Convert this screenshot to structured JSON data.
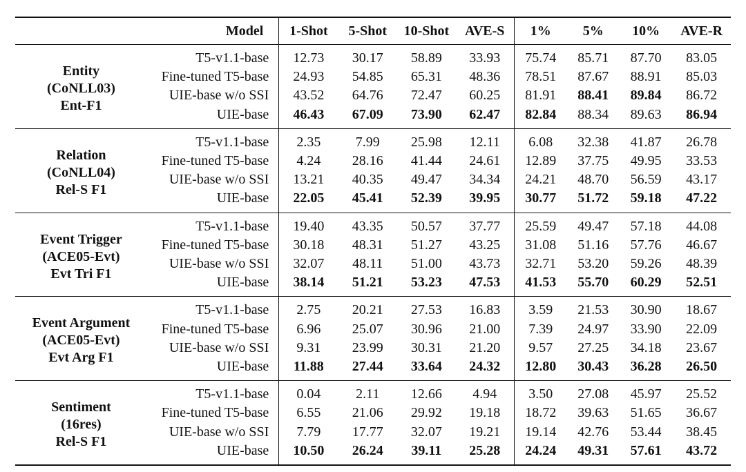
{
  "header": {
    "model": "Model",
    "cols": [
      "1-Shot",
      "5-Shot",
      "10-Shot",
      "AVE-S",
      "1%",
      "5%",
      "10%",
      "AVE-R"
    ]
  },
  "groups": [
    {
      "task": [
        "Entity",
        "(CoNLL03)",
        "Ent-F1"
      ],
      "rows": [
        {
          "model": "T5-v1.1-base",
          "v": [
            "12.73",
            "30.17",
            "58.89",
            "33.93",
            "75.74",
            "85.71",
            "87.70",
            "83.05"
          ]
        },
        {
          "model": "Fine-tuned T5-base",
          "v": [
            "24.93",
            "54.85",
            "65.31",
            "48.36",
            "78.51",
            "87.67",
            "88.91",
            "85.03"
          ]
        },
        {
          "model": "UIE-base w/o SSI",
          "v": [
            "43.52",
            "64.76",
            "72.47",
            "60.25",
            "81.91",
            "88.41",
            "89.84",
            "86.72"
          ]
        },
        {
          "model": "UIE-base",
          "v": [
            "46.43",
            "67.09",
            "73.90",
            "62.47",
            "82.84",
            "88.34",
            "89.63",
            "86.94"
          ]
        }
      ]
    },
    {
      "task": [
        "Relation",
        "(CoNLL04)",
        "Rel-S F1"
      ],
      "rows": [
        {
          "model": "T5-v1.1-base",
          "v": [
            "2.35",
            "7.99",
            "25.98",
            "12.11",
            "6.08",
            "32.38",
            "41.87",
            "26.78"
          ]
        },
        {
          "model": "Fine-tuned T5-base",
          "v": [
            "4.24",
            "28.16",
            "41.44",
            "24.61",
            "12.89",
            "37.75",
            "49.95",
            "33.53"
          ]
        },
        {
          "model": "UIE-base w/o SSI",
          "v": [
            "13.21",
            "40.35",
            "49.47",
            "34.34",
            "24.21",
            "48.70",
            "56.59",
            "43.17"
          ]
        },
        {
          "model": "UIE-base",
          "v": [
            "22.05",
            "45.41",
            "52.39",
            "39.95",
            "30.77",
            "51.72",
            "59.18",
            "47.22"
          ]
        }
      ]
    },
    {
      "task": [
        "Event Trigger",
        "(ACE05-Evt)",
        "Evt Tri F1"
      ],
      "rows": [
        {
          "model": "T5-v1.1-base",
          "v": [
            "19.40",
            "43.35",
            "50.57",
            "37.77",
            "25.59",
            "49.47",
            "57.18",
            "44.08"
          ]
        },
        {
          "model": "Fine-tuned T5-base",
          "v": [
            "30.18",
            "48.31",
            "51.27",
            "43.25",
            "31.08",
            "51.16",
            "57.76",
            "46.67"
          ]
        },
        {
          "model": "UIE-base w/o SSI",
          "v": [
            "32.07",
            "48.11",
            "51.00",
            "43.73",
            "32.71",
            "53.20",
            "59.26",
            "48.39"
          ]
        },
        {
          "model": "UIE-base",
          "v": [
            "38.14",
            "51.21",
            "53.23",
            "47.53",
            "41.53",
            "55.70",
            "60.29",
            "52.51"
          ]
        }
      ]
    },
    {
      "task": [
        "Event Argument",
        "(ACE05-Evt)",
        "Evt Arg F1"
      ],
      "rows": [
        {
          "model": "T5-v1.1-base",
          "v": [
            "2.75",
            "20.21",
            "27.53",
            "16.83",
            "3.59",
            "21.53",
            "30.90",
            "18.67"
          ]
        },
        {
          "model": "Fine-tuned T5-base",
          "v": [
            "6.96",
            "25.07",
            "30.96",
            "21.00",
            "7.39",
            "24.97",
            "33.90",
            "22.09"
          ]
        },
        {
          "model": "UIE-base w/o SSI",
          "v": [
            "9.31",
            "23.99",
            "30.31",
            "21.20",
            "9.57",
            "27.25",
            "34.18",
            "23.67"
          ]
        },
        {
          "model": "UIE-base",
          "v": [
            "11.88",
            "27.44",
            "33.64",
            "24.32",
            "12.80",
            "30.43",
            "36.28",
            "26.50"
          ]
        }
      ]
    },
    {
      "task": [
        "Sentiment",
        "(16res)",
        "Rel-S F1"
      ],
      "rows": [
        {
          "model": "T5-v1.1-base",
          "v": [
            "0.04",
            "2.11",
            "12.66",
            "4.94",
            "3.50",
            "27.08",
            "45.97",
            "25.52"
          ]
        },
        {
          "model": "Fine-tuned T5-base",
          "v": [
            "6.55",
            "21.06",
            "29.92",
            "19.18",
            "18.72",
            "39.63",
            "51.65",
            "36.67"
          ]
        },
        {
          "model": "UIE-base w/o SSI",
          "v": [
            "7.79",
            "17.77",
            "32.07",
            "19.21",
            "19.14",
            "42.76",
            "53.44",
            "38.45"
          ]
        },
        {
          "model": "UIE-base",
          "v": [
            "10.50",
            "26.24",
            "39.11",
            "25.28",
            "24.24",
            "49.31",
            "57.61",
            "43.72"
          ]
        }
      ]
    }
  ],
  "bold": {
    "g0": [
      [
        2,
        5
      ],
      [
        2,
        6
      ],
      [
        3,
        0
      ],
      [
        3,
        1
      ],
      [
        3,
        2
      ],
      [
        3,
        3
      ],
      [
        3,
        4
      ],
      [
        3,
        7
      ]
    ],
    "g1": [
      [
        3,
        0
      ],
      [
        3,
        1
      ],
      [
        3,
        2
      ],
      [
        3,
        3
      ],
      [
        3,
        4
      ],
      [
        3,
        5
      ],
      [
        3,
        6
      ],
      [
        3,
        7
      ]
    ],
    "g2": [
      [
        3,
        0
      ],
      [
        3,
        1
      ],
      [
        3,
        2
      ],
      [
        3,
        3
      ],
      [
        3,
        4
      ],
      [
        3,
        5
      ],
      [
        3,
        6
      ],
      [
        3,
        7
      ]
    ],
    "g3": [
      [
        3,
        0
      ],
      [
        3,
        1
      ],
      [
        3,
        2
      ],
      [
        3,
        3
      ],
      [
        3,
        4
      ],
      [
        3,
        5
      ],
      [
        3,
        6
      ],
      [
        3,
        7
      ]
    ],
    "g4": [
      [
        3,
        0
      ],
      [
        3,
        1
      ],
      [
        3,
        2
      ],
      [
        3,
        3
      ],
      [
        3,
        4
      ],
      [
        3,
        5
      ],
      [
        3,
        6
      ],
      [
        3,
        7
      ]
    ]
  }
}
